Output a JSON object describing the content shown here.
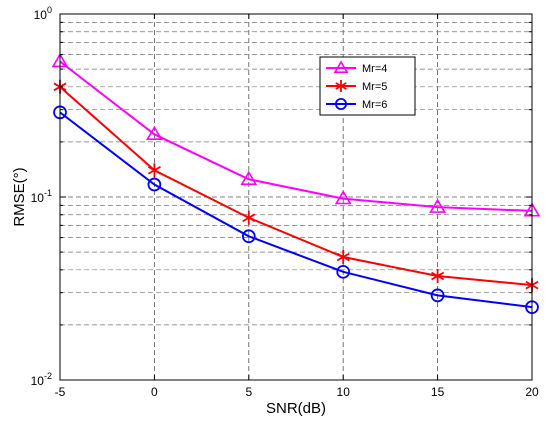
{
  "chart_data": {
    "type": "line",
    "title": "",
    "xlabel": "SNR(dB)",
    "ylabel": "RMSE(°)",
    "x": [
      -5,
      0,
      5,
      10,
      15,
      20
    ],
    "xlim": [
      -5,
      20
    ],
    "x_ticks": [
      -5,
      0,
      5,
      10,
      15,
      20
    ],
    "y_scale": "log",
    "ylim": [
      0.01,
      1
    ],
    "y_ticks": [
      {
        "value": 1,
        "base": "10",
        "exp": "0"
      },
      {
        "value": 0.1,
        "base": "10",
        "exp": "-1"
      },
      {
        "value": 0.01,
        "base": "10",
        "exp": "-2"
      }
    ],
    "grid": true,
    "legend_position": "top-right",
    "series": [
      {
        "name": "Mr=4",
        "color": "#ff00ff",
        "marker": "triangle",
        "values": [
          0.55,
          0.22,
          0.125,
          0.098,
          0.088,
          0.084
        ]
      },
      {
        "name": "Mr=5",
        "color": "#ff0000",
        "marker": "star",
        "values": [
          0.4,
          0.14,
          0.077,
          0.047,
          0.037,
          0.033
        ]
      },
      {
        "name": "Mr=6",
        "color": "#0000ff",
        "marker": "circle",
        "values": [
          0.29,
          0.117,
          0.061,
          0.039,
          0.029,
          0.025
        ]
      }
    ]
  }
}
